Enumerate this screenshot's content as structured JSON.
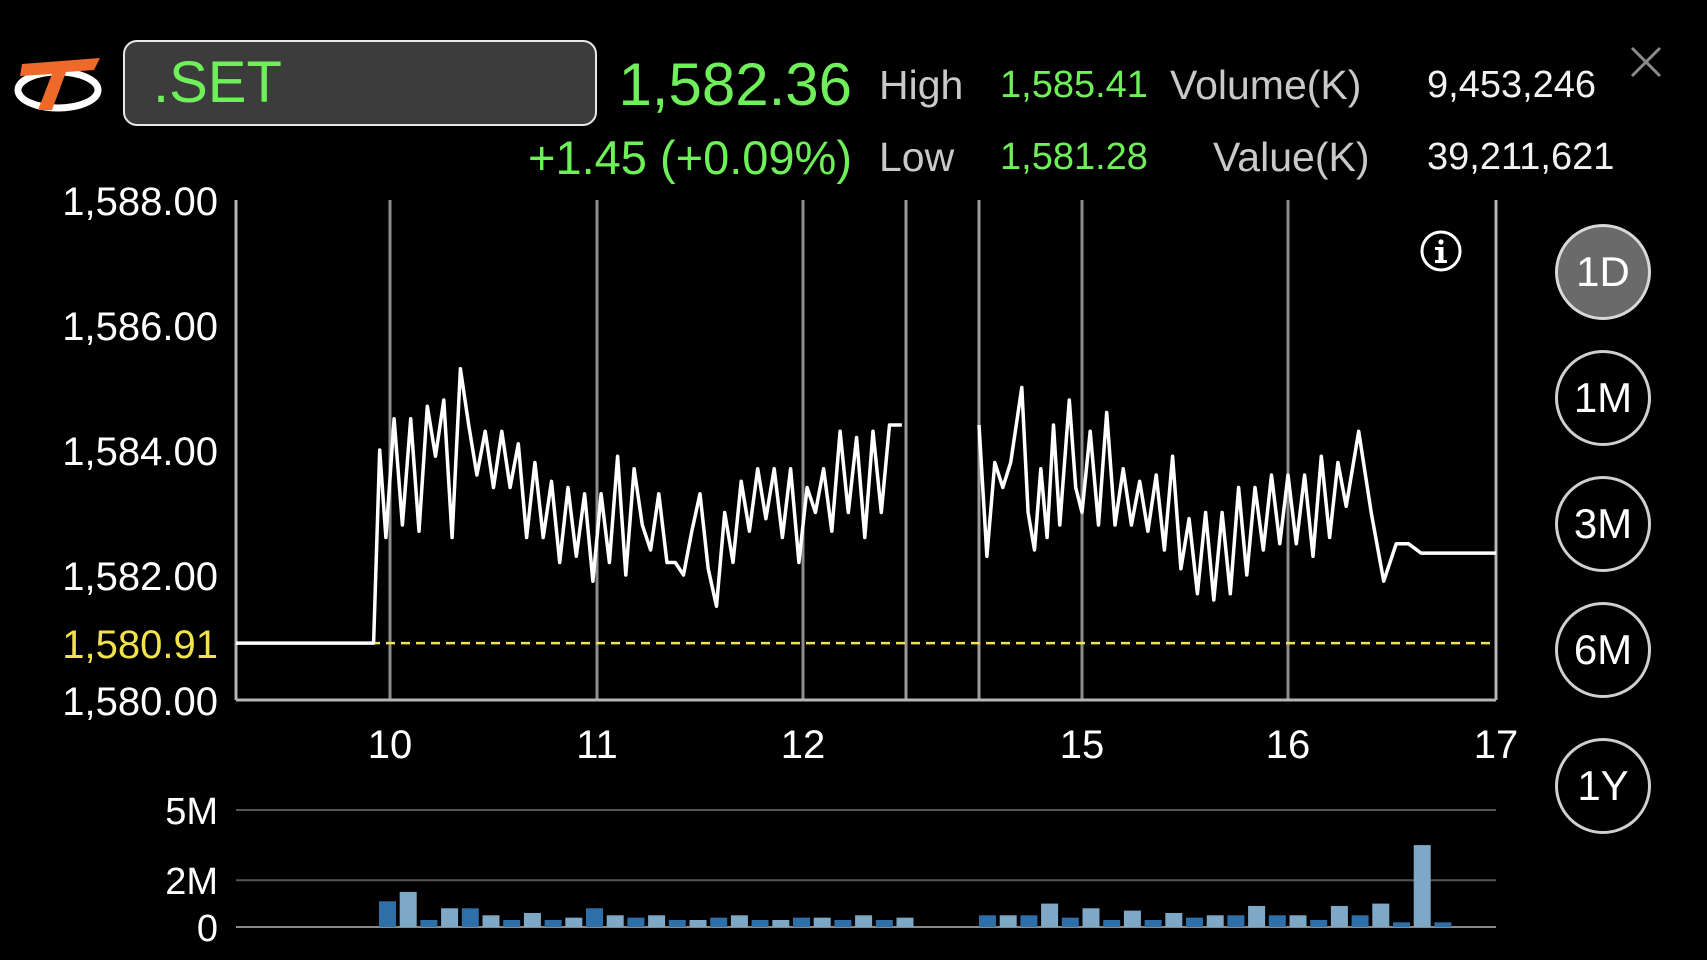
{
  "header": {
    "symbol": ".SET",
    "last_price": "1,582.36",
    "change": "+1.45 (+0.09%)",
    "high_label": "High",
    "high_value": "1,585.41",
    "low_label": "Low",
    "low_value": "1,581.28",
    "volume_label": "Volume(K)",
    "volume_value": "9,453,246",
    "value_label": "Value(K)",
    "value_value": "39,211,621"
  },
  "timeframes": [
    "1D",
    "1M",
    "3M",
    "6M",
    "1Y"
  ],
  "active_timeframe": "1D",
  "colors": {
    "up": "#6fef5a",
    "reference": "#f2e34a",
    "line": "#ffffff",
    "volume_dark": "#2f6fa8",
    "volume_light": "#7fa8c6"
  },
  "icons": [
    "logo-icon",
    "close-icon",
    "info-icon"
  ],
  "chart_data": [
    {
      "type": "line",
      "ylim": [
        1580,
        1588
      ],
      "y_ticks": [
        "1,588.00",
        "1,586.00",
        "1,584.00",
        "1,582.00",
        "1,580.00"
      ],
      "reference_label": "1,580.91",
      "reference_value": 1580.91,
      "x_ticks": [
        "10",
        "11",
        "12",
        "15",
        "16",
        "17"
      ],
      "series": [
        {
          "segments": [
            [
              [
                9.25,
                1580.91
              ],
              [
                9.92,
                1580.91
              ],
              [
                9.95,
                1584.0
              ],
              [
                9.98,
                1582.6
              ],
              [
                10.02,
                1584.5
              ],
              [
                10.06,
                1582.8
              ],
              [
                10.1,
                1584.5
              ],
              [
                10.14,
                1582.7
              ],
              [
                10.18,
                1584.7
              ],
              [
                10.22,
                1583.9
              ],
              [
                10.26,
                1584.8
              ],
              [
                10.3,
                1582.6
              ],
              [
                10.34,
                1585.3
              ],
              [
                10.38,
                1584.4
              ],
              [
                10.42,
                1583.6
              ],
              [
                10.46,
                1584.3
              ],
              [
                10.5,
                1583.4
              ],
              [
                10.54,
                1584.3
              ],
              [
                10.58,
                1583.4
              ],
              [
                10.62,
                1584.1
              ],
              [
                10.66,
                1582.6
              ],
              [
                10.7,
                1583.8
              ],
              [
                10.74,
                1582.6
              ],
              [
                10.78,
                1583.5
              ],
              [
                10.82,
                1582.2
              ],
              [
                10.86,
                1583.4
              ],
              [
                10.9,
                1582.3
              ],
              [
                10.94,
                1583.3
              ],
              [
                10.98,
                1581.9
              ],
              [
                11.02,
                1583.3
              ],
              [
                11.06,
                1582.2
              ],
              [
                11.1,
                1583.9
              ],
              [
                11.14,
                1582.0
              ],
              [
                11.18,
                1583.7
              ],
              [
                11.22,
                1582.8
              ],
              [
                11.26,
                1582.4
              ],
              [
                11.3,
                1583.3
              ],
              [
                11.34,
                1582.2
              ],
              [
                11.38,
                1582.2
              ],
              [
                11.42,
                1582.0
              ],
              [
                11.46,
                1582.7
              ],
              [
                11.5,
                1583.3
              ],
              [
                11.54,
                1582.1
              ],
              [
                11.58,
                1581.5
              ],
              [
                11.62,
                1583.0
              ],
              [
                11.66,
                1582.2
              ],
              [
                11.7,
                1583.5
              ],
              [
                11.74,
                1582.7
              ],
              [
                11.78,
                1583.7
              ],
              [
                11.82,
                1582.9
              ],
              [
                11.86,
                1583.7
              ],
              [
                11.9,
                1582.6
              ],
              [
                11.94,
                1583.7
              ],
              [
                11.98,
                1582.2
              ],
              [
                12.02,
                1583.4
              ],
              [
                12.06,
                1583.0
              ],
              [
                12.1,
                1583.7
              ],
              [
                12.14,
                1582.7
              ],
              [
                12.18,
                1584.3
              ],
              [
                12.22,
                1583.0
              ],
              [
                12.26,
                1584.2
              ],
              [
                12.3,
                1582.6
              ],
              [
                12.34,
                1584.3
              ],
              [
                12.38,
                1583.0
              ],
              [
                12.42,
                1584.4
              ],
              [
                12.48,
                1584.4
              ]
            ],
            [
              [
                14.35,
                1584.4
              ],
              [
                14.4,
                1582.3
              ],
              [
                14.45,
                1583.8
              ],
              [
                14.5,
                1583.4
              ],
              [
                14.55,
                1583.8
              ],
              [
                14.62,
                1585.0
              ],
              [
                14.66,
                1583.0
              ],
              [
                14.7,
                1582.4
              ],
              [
                14.74,
                1583.7
              ],
              [
                14.78,
                1582.6
              ],
              [
                14.82,
                1584.4
              ],
              [
                14.86,
                1582.8
              ],
              [
                14.92,
                1584.8
              ],
              [
                14.96,
                1583.4
              ],
              [
                15.0,
                1583.0
              ],
              [
                15.04,
                1584.3
              ],
              [
                15.08,
                1582.8
              ],
              [
                15.12,
                1584.6
              ],
              [
                15.16,
                1582.8
              ],
              [
                15.2,
                1583.7
              ],
              [
                15.24,
                1582.8
              ],
              [
                15.28,
                1583.5
              ],
              [
                15.32,
                1582.7
              ],
              [
                15.36,
                1583.6
              ],
              [
                15.4,
                1582.4
              ],
              [
                15.44,
                1583.9
              ],
              [
                15.48,
                1582.1
              ],
              [
                15.52,
                1582.9
              ],
              [
                15.56,
                1581.7
              ],
              [
                15.6,
                1583.0
              ],
              [
                15.64,
                1581.6
              ],
              [
                15.68,
                1583.0
              ],
              [
                15.72,
                1581.7
              ],
              [
                15.76,
                1583.4
              ],
              [
                15.8,
                1582.0
              ],
              [
                15.84,
                1583.4
              ],
              [
                15.88,
                1582.4
              ],
              [
                15.92,
                1583.6
              ],
              [
                15.96,
                1582.5
              ],
              [
                16.0,
                1583.6
              ],
              [
                16.04,
                1582.5
              ],
              [
                16.08,
                1583.6
              ],
              [
                16.12,
                1582.3
              ],
              [
                16.16,
                1583.9
              ],
              [
                16.2,
                1582.6
              ],
              [
                16.24,
                1583.8
              ],
              [
                16.28,
                1583.1
              ],
              [
                16.34,
                1584.3
              ],
              [
                16.4,
                1583.0
              ],
              [
                16.46,
                1581.9
              ],
              [
                16.52,
                1582.5
              ],
              [
                16.58,
                1582.5
              ],
              [
                16.64,
                1582.35
              ],
              [
                17.0,
                1582.35
              ]
            ]
          ]
        }
      ]
    },
    {
      "type": "bar",
      "ylim": [
        0,
        5
      ],
      "y_ticks": [
        "5M",
        "2M",
        "0"
      ],
      "series": [
        {
          "segments": [
            [
              1.1,
              1.5,
              0.3,
              0.8,
              0.8,
              0.5,
              0.3,
              0.6,
              0.3,
              0.4,
              0.8,
              0.5,
              0.4,
              0.5,
              0.3,
              0.3,
              0.4,
              0.5,
              0.3,
              0.3,
              0.4,
              0.4,
              0.3,
              0.5,
              0.3,
              0.4
            ],
            [
              0.5,
              0.5,
              0.5,
              1.0,
              0.4,
              0.8,
              0.3,
              0.7,
              0.3,
              0.6,
              0.4,
              0.5,
              0.5,
              0.9,
              0.5,
              0.5,
              0.3,
              0.9,
              0.5,
              1.0,
              0.2,
              3.5,
              0.2
            ]
          ]
        }
      ]
    }
  ]
}
